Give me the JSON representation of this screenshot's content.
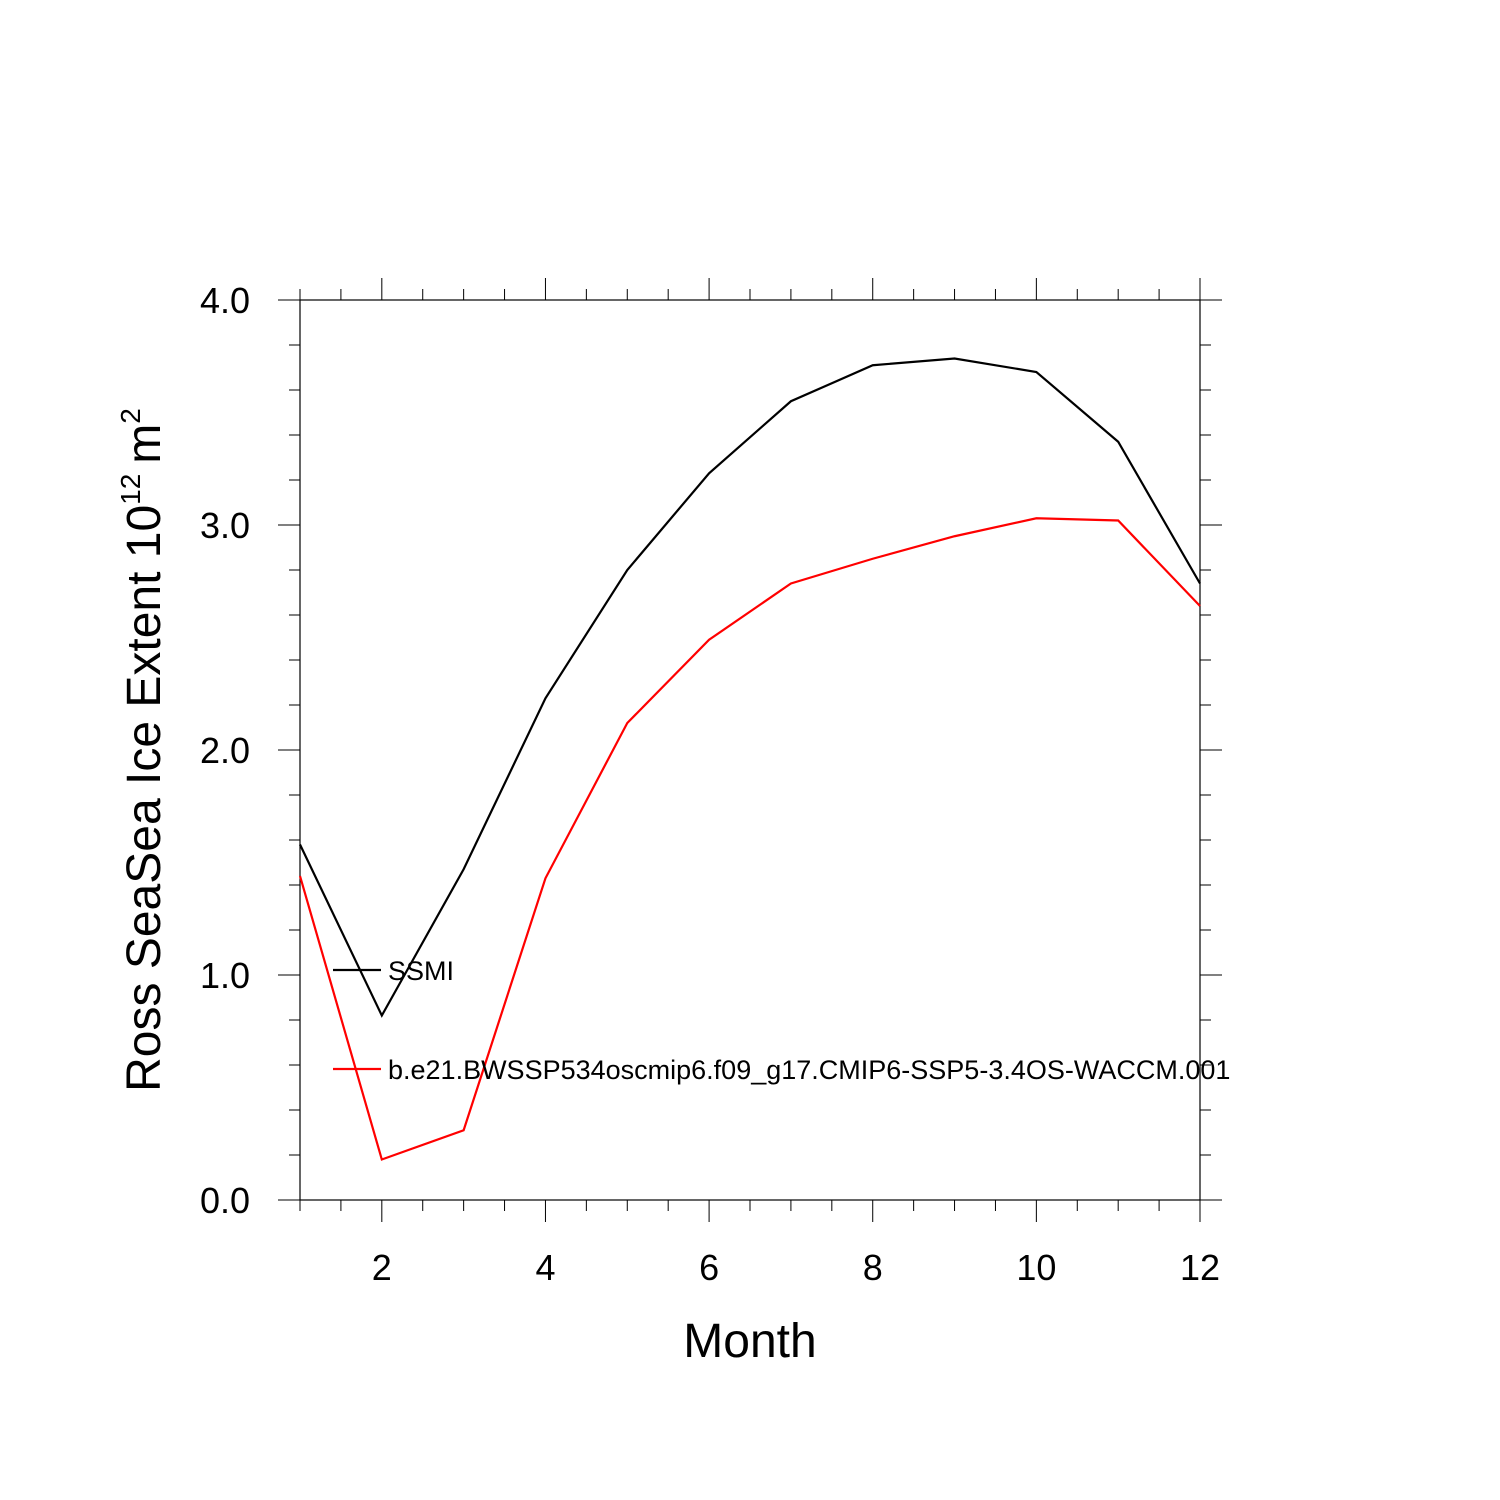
{
  "chart_data": {
    "type": "line",
    "xlabel": "Month",
    "ylabel": {
      "main": "Ross SeaSea Ice Extent 10",
      "exponent": "12",
      "unit": "m",
      "unit_exponent": "2"
    },
    "xlim": [
      1,
      12
    ],
    "ylim": [
      0,
      4
    ],
    "x_ticks": [
      2,
      4,
      6,
      8,
      10,
      12
    ],
    "x_tick_labels": [
      "2",
      "4",
      "6",
      "8",
      "10",
      "12"
    ],
    "y_ticks": [
      0,
      1,
      2,
      3,
      4
    ],
    "y_tick_labels": [
      "0.0",
      "1.0",
      "2.0",
      "3.0",
      "4.0"
    ],
    "grid": false,
    "legend_position": "inside-lower-left",
    "x": [
      1,
      2,
      3,
      4,
      5,
      6,
      7,
      8,
      9,
      10,
      11,
      12
    ],
    "series": [
      {
        "name": "SSMI",
        "color": "#000000",
        "values": [
          1.58,
          0.82,
          1.47,
          2.23,
          2.8,
          3.23,
          3.55,
          3.71,
          3.74,
          3.68,
          3.37,
          2.74
        ]
      },
      {
        "name": "b.e21.BWSSP534oscmip6.f09_g17.CMIP6-SSP5-3.4OS-WACCM.001",
        "color": "#ff0000",
        "values": [
          1.44,
          0.18,
          0.31,
          1.43,
          2.12,
          2.49,
          2.74,
          2.85,
          2.95,
          3.03,
          3.02,
          2.64
        ]
      }
    ]
  }
}
